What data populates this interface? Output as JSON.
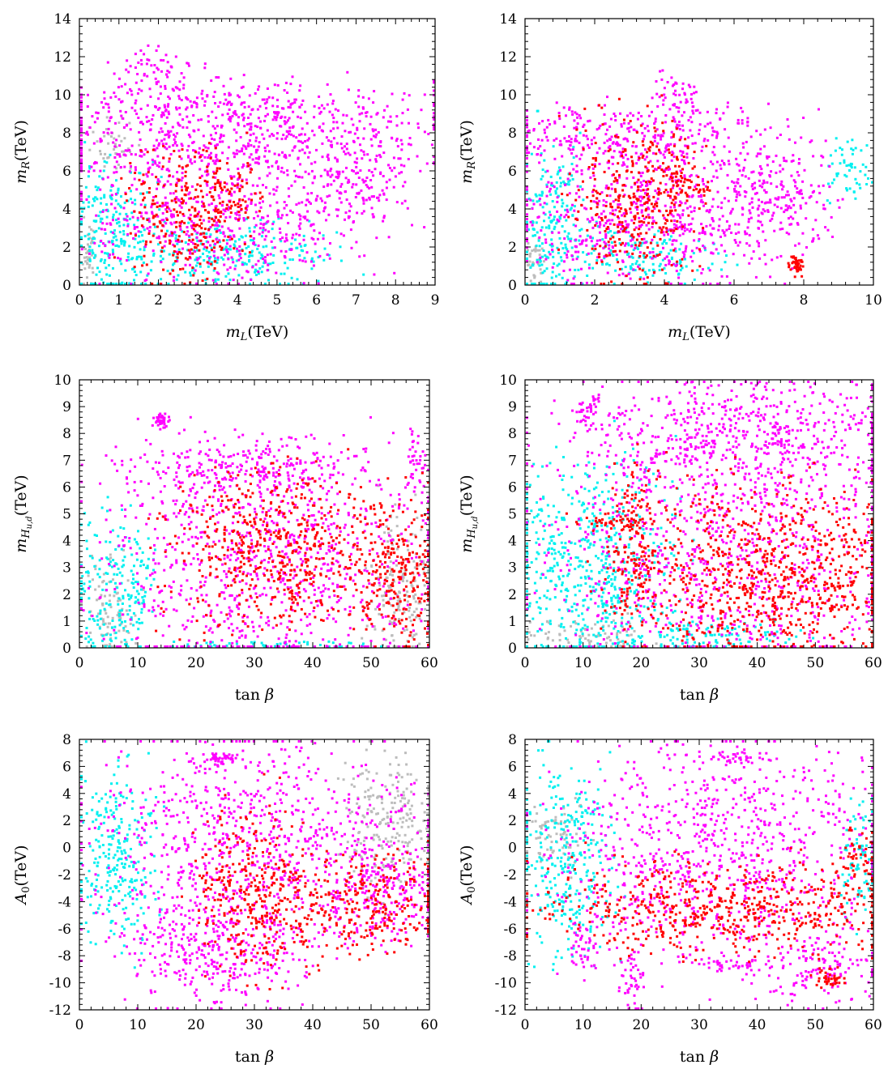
{
  "figure": {
    "colors": {
      "gray": "#bcbcbc",
      "cyan": "#00f0f0",
      "magenta": "#ff00ff",
      "red": "#ff0000",
      "axis": "#000000",
      "background": "#ffffff"
    }
  },
  "chart_data": [
    {
      "id": "panel-1",
      "type": "scatter",
      "xlabel": "m_L(TeV)",
      "ylabel": "m_R(TeV)",
      "xlim": [
        0,
        9
      ],
      "ylim": [
        0,
        14
      ],
      "xticks": [
        0,
        1,
        2,
        3,
        4,
        5,
        6,
        7,
        8,
        9
      ],
      "yticks": [
        0,
        2,
        4,
        6,
        8,
        10,
        12,
        14
      ],
      "series": [
        {
          "color": "gray",
          "regions": [
            [
              0,
              0.4,
              0,
              3.0
            ],
            [
              0.4,
              1.2,
              6.5,
              8.5
            ]
          ]
        },
        {
          "color": "cyan",
          "regions": [
            [
              0,
              1.6,
              0,
              6.0
            ],
            [
              1.2,
              5.8,
              0.3,
              3.0
            ]
          ]
        },
        {
          "color": "magenta",
          "regions": [
            [
              0,
              7.6,
              6.0,
              8.6
            ],
            [
              1.0,
              2.7,
              10.5,
              12.2
            ],
            [
              0.2,
              7.8,
              8.2,
              10.5
            ],
            [
              1.0,
              6.2,
              1.0,
              6.0
            ],
            [
              6.0,
              8.0,
              3.5,
              7.5
            ]
          ]
        },
        {
          "color": "red",
          "regions": [
            [
              1.5,
              3.8,
              1.0,
              6.6
            ],
            [
              3.4,
              4.4,
              3.5,
              6.0
            ]
          ]
        }
      ]
    },
    {
      "id": "panel-2",
      "type": "scatter",
      "xlabel": "m_L(TeV)",
      "ylabel": "m_R(TeV)",
      "xlim": [
        0,
        10
      ],
      "ylim": [
        0,
        14
      ],
      "xticks": [
        0,
        2,
        4,
        6,
        8,
        10
      ],
      "yticks": [
        0,
        2,
        4,
        6,
        8,
        10,
        12,
        14
      ],
      "series": [
        {
          "color": "gray",
          "regions": [
            [
              0,
              0.6,
              0,
              2.5
            ]
          ]
        },
        {
          "color": "cyan",
          "regions": [
            [
              0,
              1.5,
              0,
              6.5
            ],
            [
              1.5,
              5.2,
              0.5,
              2.8
            ],
            [
              8.7,
              9.8,
              4.8,
              7.5
            ]
          ]
        },
        {
          "color": "magenta",
          "regions": [
            [
              0,
              6.8,
              6.5,
              9.3
            ],
            [
              0.5,
              6.8,
              1.0,
              6.5
            ],
            [
              6.0,
              8.4,
              2.5,
              6.5
            ],
            [
              3.8,
              5.0,
              9.0,
              11.0
            ]
          ]
        },
        {
          "color": "red",
          "regions": [
            [
              1.8,
              4.6,
              1.2,
              8.2
            ],
            [
              4.0,
              5.2,
              4.5,
              6.5
            ],
            [
              7.6,
              7.9,
              0.7,
              1.6
            ]
          ]
        }
      ]
    },
    {
      "id": "panel-3",
      "type": "scatter",
      "xlabel": "tan β",
      "ylabel": "m_{H_{u,d}}(TeV)",
      "xlim": [
        0,
        60
      ],
      "ylim": [
        0,
        10
      ],
      "xticks": [
        0,
        10,
        20,
        30,
        40,
        50,
        60
      ],
      "yticks": [
        0,
        1,
        2,
        3,
        4,
        5,
        6,
        7,
        8,
        9,
        10
      ],
      "series": [
        {
          "color": "gray",
          "regions": [
            [
              51,
              60,
              0,
              4.5
            ],
            [
              1,
              8,
              0,
              3.0
            ]
          ]
        },
        {
          "color": "cyan",
          "regions": [
            [
              1,
              12,
              0,
              4.3
            ],
            [
              12,
              50,
              0,
              0.3
            ]
          ]
        },
        {
          "color": "magenta",
          "regions": [
            [
              10,
              55,
              0.1,
              6.5
            ],
            [
              12,
              45,
              6.0,
              7.7
            ],
            [
              13,
              15,
              8.3,
              8.8
            ],
            [
              56,
              59,
              5.5,
              8.2
            ]
          ]
        },
        {
          "color": "red",
          "regions": [
            [
              20,
              50,
              1.5,
              6.0
            ],
            [
              50,
              60,
              0.5,
              5.0
            ]
          ]
        }
      ]
    },
    {
      "id": "panel-4",
      "type": "scatter",
      "xlabel": "tan β",
      "ylabel": "m_{H_{u,d}}(TeV)",
      "xlim": [
        0,
        60
      ],
      "ylim": [
        0,
        10
      ],
      "xticks": [
        0,
        10,
        20,
        30,
        40,
        50,
        60
      ],
      "yticks": [
        0,
        1,
        2,
        3,
        4,
        5,
        6,
        7,
        8,
        9,
        10
      ],
      "series": [
        {
          "color": "gray",
          "regions": [
            [
              1,
              20,
              0,
              1.0
            ]
          ]
        },
        {
          "color": "cyan",
          "regions": [
            [
              1,
              22,
              0,
              6.3
            ],
            [
              20,
              45,
              0,
              1.0
            ]
          ]
        },
        {
          "color": "magenta",
          "regions": [
            [
              9,
              13,
              8.3,
              9.5
            ],
            [
              10,
              60,
              0.2,
              7.0
            ],
            [
              15,
              60,
              6.5,
              9.6
            ]
          ]
        },
        {
          "color": "red",
          "regions": [
            [
              10,
              20,
              4.5,
              5.0
            ],
            [
              24,
              60,
              0.3,
              5.5
            ],
            [
              15,
              22,
              1.0,
              6.5
            ]
          ]
        }
      ]
    },
    {
      "id": "panel-5",
      "type": "scatter",
      "xlabel": "tan β",
      "ylabel": "A_0(TeV)",
      "xlim": [
        0,
        60
      ],
      "ylim": [
        -12,
        8
      ],
      "xticks": [
        0,
        10,
        20,
        30,
        40,
        50,
        60
      ],
      "yticks": [
        -12,
        -10,
        -8,
        -6,
        -4,
        -2,
        0,
        2,
        4,
        6,
        8
      ],
      "series": [
        {
          "color": "gray",
          "regions": [
            [
              47,
              60,
              -2,
              5.5
            ]
          ]
        },
        {
          "color": "cyan",
          "regions": [
            [
              1,
              12,
              -6,
              4.5
            ]
          ]
        },
        {
          "color": "magenta",
          "regions": [
            [
              8,
              52,
              -6,
              6.5
            ],
            [
              12,
              35,
              -11,
              -5
            ],
            [
              22,
              26,
              6.3,
              7.0
            ],
            [
              45,
              60,
              -6,
              0
            ]
          ]
        },
        {
          "color": "red",
          "regions": [
            [
              22,
              36,
              -8,
              2
            ],
            [
              36,
              60,
              -7,
              -1
            ]
          ]
        }
      ]
    },
    {
      "id": "panel-6",
      "type": "scatter",
      "xlabel": "tan β",
      "ylabel": "A_0(TeV)",
      "xlim": [
        0,
        60
      ],
      "ylim": [
        -12,
        8
      ],
      "xticks": [
        0,
        10,
        20,
        30,
        40,
        50,
        60
      ],
      "yticks": [
        -12,
        -10,
        -8,
        -6,
        -4,
        -2,
        0,
        2,
        4,
        6,
        8
      ],
      "series": [
        {
          "color": "gray",
          "regions": [
            [
              1,
              10,
              -1,
              3
            ]
          ]
        },
        {
          "color": "cyan",
          "regions": [
            [
              1,
              14,
              -6.5,
              4.5
            ],
            [
              55,
              60,
              -4,
              3
            ]
          ]
        },
        {
          "color": "magenta",
          "regions": [
            [
              10,
              57,
              -7,
              6
            ],
            [
              17,
              20,
              -11.5,
              -8
            ],
            [
              30,
              40,
              -9,
              -8
            ],
            [
              30,
              41,
              6.3,
              7.0
            ],
            [
              44,
              57,
              -11,
              -7
            ],
            [
              8,
              12,
              -9,
              -6
            ]
          ]
        },
        {
          "color": "red",
          "regions": [
            [
              10,
              60,
              -7,
              -1.5
            ],
            [
              55,
              60,
              -2,
              1.5
            ],
            [
              50,
              54,
              -10,
              -9
            ]
          ]
        }
      ]
    }
  ]
}
